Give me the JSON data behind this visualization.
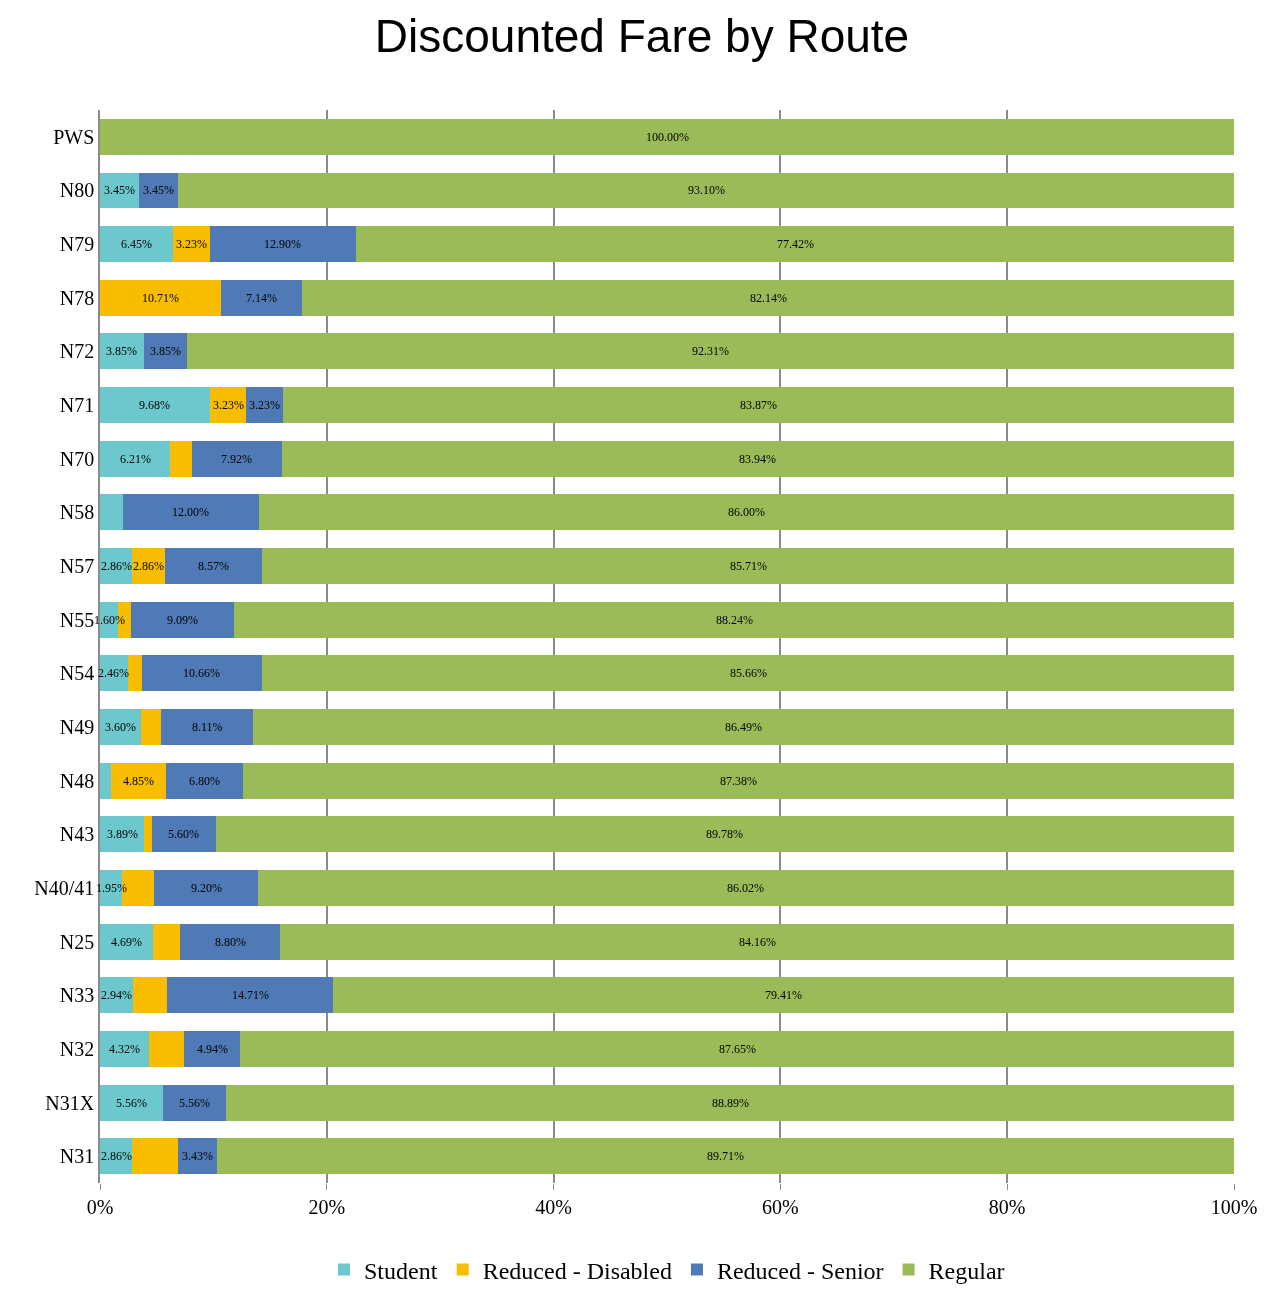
{
  "chart_data": {
    "type": "bar",
    "orientation": "horizontal",
    "stacked": true,
    "title": "Discounted Fare by Route",
    "categories": [
      "PWS",
      "N80",
      "N79",
      "N78",
      "N72",
      "N71",
      "N70",
      "N58",
      "N57",
      "N55",
      "N54",
      "N49",
      "N48",
      "N43",
      "N40/41",
      "N25",
      "N33",
      "N32",
      "N31X",
      "N31"
    ],
    "series": [
      {
        "name": "Student",
        "color": "#6cc8cc",
        "values": [
          0,
          3.45,
          6.45,
          0,
          3.85,
          9.68,
          6.21,
          2.0,
          2.86,
          1.6,
          2.46,
          3.6,
          1.0,
          3.89,
          1.95,
          4.69,
          2.94,
          4.32,
          5.56,
          2.86
        ],
        "value_labels": [
          null,
          "3.45%",
          "6.45%",
          null,
          "3.85%",
          "9.68%",
          "6.21%",
          null,
          "2.86%",
          "1.60%",
          "2.46%",
          "3.60%",
          null,
          "3.89%",
          "1.95%",
          "4.69%",
          "2.94%",
          "4.32%",
          "5.56%",
          "2.86%"
        ]
      },
      {
        "name": "Reduced - Disabled",
        "color": "#f9bd00",
        "values": [
          0,
          0,
          3.23,
          10.71,
          0,
          3.23,
          1.9,
          0,
          2.86,
          1.1,
          1.2,
          1.8,
          4.85,
          0.7,
          2.8,
          2.4,
          2.94,
          3.1,
          0,
          4.0
        ],
        "value_labels": [
          null,
          null,
          "3.23%",
          "10.71%",
          null,
          "3.23%",
          null,
          null,
          "2.86%",
          null,
          null,
          null,
          "4.85%",
          null,
          null,
          null,
          null,
          null,
          null,
          null
        ]
      },
      {
        "name": "Reduced - Senior",
        "color": "#4f7ab5",
        "values": [
          0,
          3.45,
          12.9,
          7.14,
          3.85,
          3.23,
          7.92,
          12.0,
          8.57,
          9.09,
          10.66,
          8.11,
          6.8,
          5.6,
          9.2,
          8.8,
          14.71,
          4.94,
          5.56,
          3.43
        ],
        "value_labels": [
          null,
          "3.45%",
          "12.90%",
          "7.14%",
          "3.85%",
          "3.23%",
          "7.92%",
          "12.00%",
          "8.57%",
          "9.09%",
          "10.66%",
          "8.11%",
          "6.80%",
          "5.60%",
          "9.20%",
          "8.80%",
          "14.71%",
          "4.94%",
          "5.56%",
          "3.43%"
        ]
      },
      {
        "name": "Regular",
        "color": "#9bbb59",
        "values": [
          100,
          93.1,
          77.42,
          82.14,
          92.31,
          83.87,
          83.94,
          86.0,
          85.71,
          88.24,
          85.66,
          86.49,
          87.38,
          89.78,
          86.02,
          84.16,
          79.41,
          87.65,
          88.89,
          89.71
        ],
        "value_labels": [
          "100.00%",
          "93.10%",
          "77.42%",
          "82.14%",
          "92.31%",
          "83.87%",
          "83.94%",
          "86.00%",
          "85.71%",
          "88.24%",
          "85.66%",
          "86.49%",
          "87.38%",
          "89.78%",
          "86.02%",
          "84.16%",
          "79.41%",
          "87.65%",
          "88.89%",
          "89.71%"
        ]
      }
    ],
    "xlim": [
      0,
      100
    ],
    "xticks": [
      {
        "value": 0,
        "label": "0%"
      },
      {
        "value": 20,
        "label": "20%"
      },
      {
        "value": 40,
        "label": "40%"
      },
      {
        "value": 60,
        "label": "60%"
      },
      {
        "value": 80,
        "label": "80%"
      },
      {
        "value": 100,
        "label": "100%"
      }
    ],
    "grid": "x",
    "legend": "bottom"
  }
}
